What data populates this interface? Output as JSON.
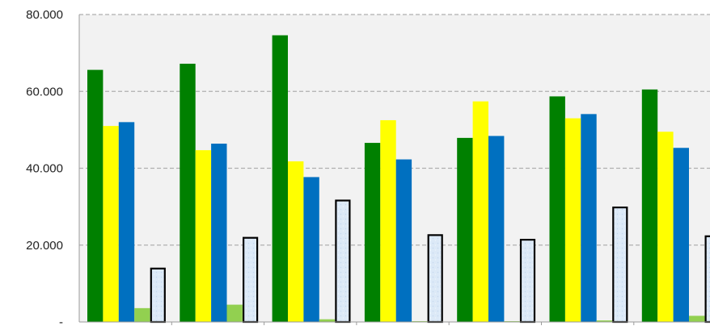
{
  "chart_data": {
    "type": "bar",
    "title": "",
    "xlabel": "",
    "ylabel": "",
    "ylim": [
      0,
      80000
    ],
    "yticks": [
      {
        "value": 0,
        "label": "-"
      },
      {
        "value": 20000,
        "label": "20.000"
      },
      {
        "value": 40000,
        "label": "40.000"
      },
      {
        "value": 60000,
        "label": "60.000"
      },
      {
        "value": 80000,
        "label": "80.000"
      }
    ],
    "grid": true,
    "legend": "none",
    "categories": [
      "",
      "",
      "",
      "",
      "",
      "",
      ""
    ],
    "series": [
      {
        "color": "#008000",
        "values": [
          65600,
          67200,
          74600,
          46600,
          47900,
          58700,
          60500
        ]
      },
      {
        "color": "#ffff00",
        "values": [
          51000,
          44700,
          41800,
          52500,
          57400,
          53000,
          49500
        ]
      },
      {
        "color": "#0070c0",
        "values": [
          52000,
          46400,
          37700,
          42300,
          48400,
          54100,
          45300
        ]
      },
      {
        "color": "#92d050",
        "values": [
          3600,
          4500,
          700,
          200,
          200,
          400,
          1600
        ]
      },
      {
        "color": "#dce9f7",
        "outline": "#000000",
        "values": [
          13900,
          21900,
          31600,
          22600,
          21400,
          29800,
          22300
        ]
      }
    ]
  }
}
